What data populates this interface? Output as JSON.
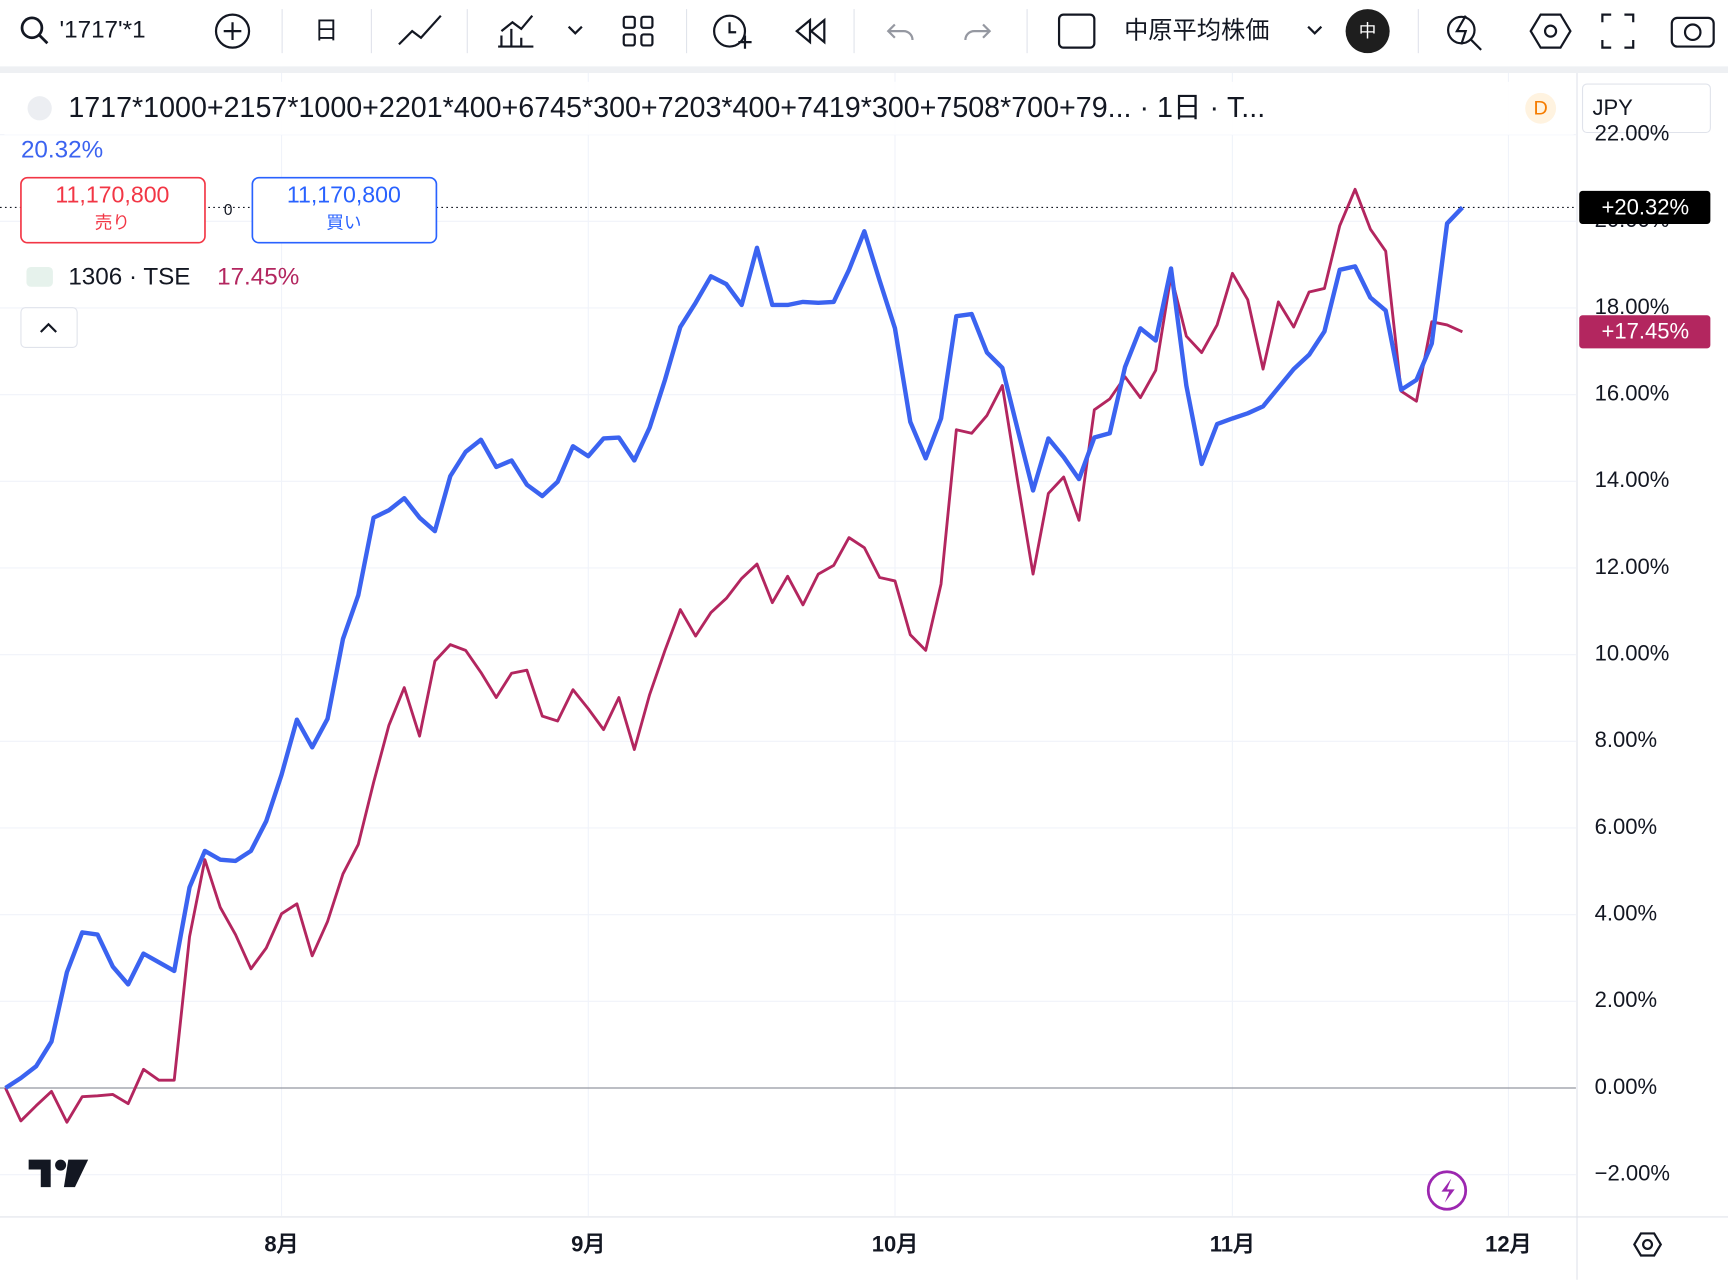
{
  "toolbar": {
    "symbol": "'1717'*1",
    "interval": "日",
    "index": "中原平均株価",
    "lang": "中"
  },
  "header": {
    "title": "1717*1000+2157*1000+2201*400+6745*300+7203*400+7419*300+7508*700+79... · 1日 · T...",
    "badge": "D",
    "currency": "JPY",
    "sell_price": "11,170,800",
    "sell": "売り",
    "buy_price": "11,170,800",
    "buy": "買い",
    "spread": "0"
  },
  "chart_data": {
    "type": "line",
    "categories": [
      null,
      null,
      null,
      null,
      null,
      null,
      null,
      null,
      null,
      null,
      null,
      null,
      null,
      null,
      null,
      null,
      null,
      null,
      "8月",
      null,
      null,
      null,
      null,
      null,
      null,
      null,
      null,
      null,
      null,
      null,
      null,
      null,
      null,
      null,
      null,
      null,
      null,
      null,
      "9月",
      null,
      null,
      null,
      null,
      null,
      null,
      null,
      null,
      null,
      null,
      null,
      null,
      null,
      null,
      null,
      null,
      null,
      null,
      null,
      "10月",
      null,
      null,
      null,
      null,
      null,
      null,
      null,
      null,
      null,
      null,
      null,
      null,
      null,
      null,
      null,
      null,
      null,
      null,
      null,
      null,
      null,
      "11月",
      null,
      null,
      null,
      null,
      null,
      null,
      null,
      null,
      null,
      null,
      null,
      null,
      null,
      null,
      null,
      null,
      null,
      "12月"
    ],
    "xlim": [
      0,
      102.4
    ],
    "ylim": [
      -2.95,
      22.1
    ],
    "yticks": [
      {
        "value": -2,
        "label": "−2.00%"
      },
      {
        "value": 0,
        "label": "0.00%"
      },
      {
        "value": 2,
        "label": "2.00%"
      },
      {
        "value": 4,
        "label": "4.00%"
      },
      {
        "value": 6,
        "label": "6.00%"
      },
      {
        "value": 8,
        "label": "8.00%"
      },
      {
        "value": 10,
        "label": "10.00%"
      },
      {
        "value": 12,
        "label": "12.00%"
      },
      {
        "value": 14,
        "label": "14.00%"
      },
      {
        "value": 16,
        "label": "16.00%"
      },
      {
        "value": 18,
        "label": "18.00%"
      },
      {
        "value": 20,
        "label": "20.00%"
      },
      {
        "value": 22,
        "label": "22.00%"
      }
    ],
    "grid": true,
    "series": [
      {
        "name": "1717*1000+2157*1000+2201*400+6745*300+7203*400+7419*300+7508*700+79...",
        "color": "#3b63f0",
        "legend_label": "20.32%",
        "last_label": "+20.32%",
        "values": [
          0,
          0.23,
          0.5,
          1.07,
          2.67,
          3.59,
          3.54,
          2.8,
          2.39,
          3.1,
          2.9,
          2.7,
          4.63,
          5.47,
          5.27,
          5.24,
          5.47,
          6.16,
          7.23,
          8.5,
          7.86,
          8.52,
          10.36,
          11.37,
          13.16,
          13.33,
          13.61,
          13.16,
          12.85,
          14.12,
          14.68,
          14.96,
          14.33,
          14.48,
          13.92,
          13.66,
          13.99,
          14.81,
          14.58,
          14.99,
          15.01,
          14.48,
          15.24,
          16.34,
          17.56,
          18.12,
          18.73,
          18.55,
          18.07,
          19.39,
          18.07,
          18.07,
          18.14,
          18.12,
          18.14,
          18.88,
          19.77,
          18.63,
          17.53,
          15.37,
          14.53,
          15.45,
          17.81,
          17.86,
          16.97,
          16.62,
          15.19,
          13.79,
          14.99,
          14.56,
          14.05,
          15.01,
          15.11,
          16.64,
          17.53,
          17.25,
          18.91,
          16.21,
          14.4,
          15.32,
          15.45,
          15.57,
          15.73,
          16.16,
          16.59,
          16.92,
          17.46,
          18.88,
          18.96,
          18.24,
          17.94,
          16.11,
          16.34,
          17.18,
          19.95,
          20.32,
          null,
          null,
          null
        ]
      },
      {
        "name": "1306 · TSE",
        "color": "#b3265f",
        "legend_label": "17.45%",
        "last_label": "+17.45%",
        "values": [
          0,
          -0.76,
          -0.41,
          -0.08,
          -0.79,
          -0.2,
          -0.18,
          -0.15,
          -0.36,
          0.43,
          0.18,
          0.18,
          3.49,
          5.27,
          4.17,
          3.54,
          2.75,
          3.23,
          4.02,
          4.25,
          3.05,
          3.84,
          4.94,
          5.62,
          7.05,
          8.37,
          9.24,
          8.12,
          9.85,
          10.23,
          10.1,
          9.59,
          9.01,
          9.57,
          9.64,
          8.58,
          8.47,
          9.19,
          8.75,
          8.27,
          9.01,
          7.81,
          9.08,
          10.1,
          11.04,
          10.43,
          10.97,
          11.3,
          11.76,
          12.09,
          11.2,
          11.81,
          11.15,
          11.86,
          12.06,
          12.7,
          12.47,
          11.78,
          11.7,
          10.46,
          10.1,
          11.63,
          15.19,
          15.11,
          15.52,
          16.21,
          13.99,
          11.86,
          13.72,
          14.1,
          13.1,
          15.65,
          15.9,
          16.41,
          15.93,
          16.56,
          18.75,
          17.35,
          16.97,
          17.61,
          18.8,
          18.19,
          16.59,
          18.14,
          17.56,
          18.37,
          18.45,
          19.9,
          20.74,
          19.82,
          19.31,
          16.08,
          15.85,
          17.68,
          17.61,
          17.45,
          null,
          null,
          null
        ]
      }
    ]
  }
}
